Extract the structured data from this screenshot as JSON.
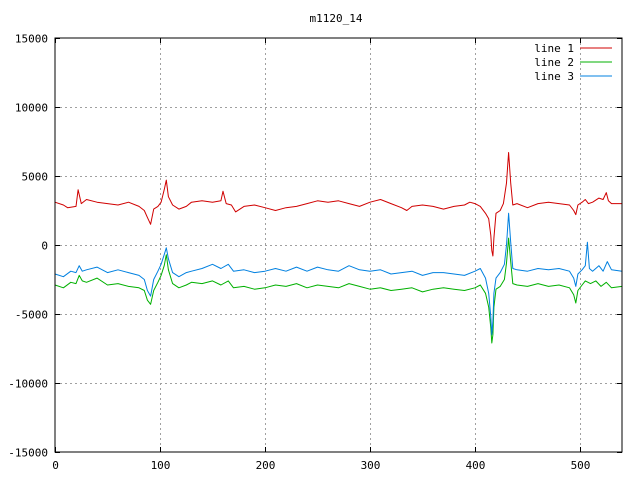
{
  "chart_data": {
    "type": "line",
    "title": "m1120_14",
    "xlabel": "",
    "ylabel": "",
    "xlim": [
      0,
      540
    ],
    "ylim": [
      -15000,
      15000
    ],
    "xticks": [
      0,
      100,
      200,
      300,
      400,
      500
    ],
    "yticks": [
      -15000,
      -10000,
      -5000,
      0,
      5000,
      10000,
      15000
    ],
    "grid": true,
    "legend_position": "top-right",
    "series": [
      {
        "name": "line 1",
        "color": "#d00000",
        "points": [
          [
            0,
            3100
          ],
          [
            8,
            2900
          ],
          [
            12,
            2700
          ],
          [
            20,
            2800
          ],
          [
            22,
            4000
          ],
          [
            25,
            3000
          ],
          [
            30,
            3300
          ],
          [
            40,
            3100
          ],
          [
            50,
            3000
          ],
          [
            60,
            2900
          ],
          [
            70,
            3100
          ],
          [
            80,
            2800
          ],
          [
            85,
            2500
          ],
          [
            88,
            2000
          ],
          [
            91,
            1500
          ],
          [
            94,
            2600
          ],
          [
            98,
            2800
          ],
          [
            101,
            3100
          ],
          [
            104,
            4000
          ],
          [
            106,
            4700
          ],
          [
            108,
            3500
          ],
          [
            112,
            2900
          ],
          [
            118,
            2600
          ],
          [
            125,
            2800
          ],
          [
            130,
            3100
          ],
          [
            140,
            3200
          ],
          [
            150,
            3100
          ],
          [
            158,
            3200
          ],
          [
            160,
            3900
          ],
          [
            163,
            3000
          ],
          [
            168,
            2900
          ],
          [
            172,
            2400
          ],
          [
            180,
            2800
          ],
          [
            190,
            2900
          ],
          [
            200,
            2700
          ],
          [
            210,
            2500
          ],
          [
            220,
            2700
          ],
          [
            230,
            2800
          ],
          [
            240,
            3000
          ],
          [
            250,
            3200
          ],
          [
            260,
            3100
          ],
          [
            270,
            3200
          ],
          [
            280,
            3000
          ],
          [
            290,
            2800
          ],
          [
            300,
            3100
          ],
          [
            310,
            3300
          ],
          [
            320,
            3000
          ],
          [
            330,
            2700
          ],
          [
            335,
            2500
          ],
          [
            340,
            2800
          ],
          [
            350,
            2900
          ],
          [
            360,
            2800
          ],
          [
            370,
            2600
          ],
          [
            380,
            2800
          ],
          [
            390,
            2900
          ],
          [
            395,
            3100
          ],
          [
            400,
            3000
          ],
          [
            405,
            2800
          ],
          [
            410,
            2300
          ],
          [
            413,
            1900
          ],
          [
            415,
            700
          ],
          [
            416,
            -400
          ],
          [
            417,
            -800
          ],
          [
            418,
            500
          ],
          [
            420,
            2300
          ],
          [
            424,
            2500
          ],
          [
            427,
            3000
          ],
          [
            430,
            4500
          ],
          [
            432,
            6700
          ],
          [
            434,
            4500
          ],
          [
            436,
            2900
          ],
          [
            440,
            3000
          ],
          [
            450,
            2700
          ],
          [
            460,
            3000
          ],
          [
            470,
            3100
          ],
          [
            480,
            3000
          ],
          [
            490,
            2900
          ],
          [
            494,
            2500
          ],
          [
            496,
            2200
          ],
          [
            498,
            2900
          ],
          [
            502,
            3100
          ],
          [
            505,
            3300
          ],
          [
            508,
            3000
          ],
          [
            512,
            3100
          ],
          [
            518,
            3400
          ],
          [
            522,
            3300
          ],
          [
            525,
            3800
          ],
          [
            527,
            3200
          ],
          [
            530,
            3000
          ],
          [
            540,
            3000
          ]
        ]
      },
      {
        "name": "line 2",
        "color": "#00b000",
        "points": [
          [
            0,
            -2900
          ],
          [
            8,
            -3100
          ],
          [
            15,
            -2700
          ],
          [
            20,
            -2800
          ],
          [
            23,
            -2200
          ],
          [
            26,
            -2600
          ],
          [
            30,
            -2700
          ],
          [
            40,
            -2400
          ],
          [
            50,
            -2900
          ],
          [
            60,
            -2800
          ],
          [
            70,
            -3000
          ],
          [
            80,
            -3100
          ],
          [
            85,
            -3300
          ],
          [
            88,
            -4000
          ],
          [
            91,
            -4300
          ],
          [
            94,
            -3300
          ],
          [
            98,
            -2700
          ],
          [
            101,
            -2200
          ],
          [
            104,
            -1500
          ],
          [
            106,
            -700
          ],
          [
            108,
            -1800
          ],
          [
            112,
            -2800
          ],
          [
            118,
            -3100
          ],
          [
            125,
            -2900
          ],
          [
            130,
            -2700
          ],
          [
            140,
            -2800
          ],
          [
            150,
            -2600
          ],
          [
            158,
            -2900
          ],
          [
            165,
            -2600
          ],
          [
            170,
            -3100
          ],
          [
            180,
            -3000
          ],
          [
            190,
            -3200
          ],
          [
            200,
            -3100
          ],
          [
            210,
            -2900
          ],
          [
            220,
            -3000
          ],
          [
            230,
            -2800
          ],
          [
            240,
            -3100
          ],
          [
            250,
            -2900
          ],
          [
            260,
            -3000
          ],
          [
            270,
            -3100
          ],
          [
            280,
            -2800
          ],
          [
            290,
            -3000
          ],
          [
            300,
            -3200
          ],
          [
            310,
            -3100
          ],
          [
            320,
            -3300
          ],
          [
            330,
            -3200
          ],
          [
            340,
            -3100
          ],
          [
            350,
            -3400
          ],
          [
            360,
            -3200
          ],
          [
            370,
            -3100
          ],
          [
            380,
            -3200
          ],
          [
            390,
            -3300
          ],
          [
            400,
            -3100
          ],
          [
            405,
            -2900
          ],
          [
            410,
            -3500
          ],
          [
            413,
            -4500
          ],
          [
            415,
            -6000
          ],
          [
            416,
            -7100
          ],
          [
            417,
            -6500
          ],
          [
            418,
            -4500
          ],
          [
            420,
            -3200
          ],
          [
            424,
            -3000
          ],
          [
            428,
            -2500
          ],
          [
            430,
            -1300
          ],
          [
            432,
            500
          ],
          [
            434,
            -1200
          ],
          [
            436,
            -2800
          ],
          [
            440,
            -2900
          ],
          [
            450,
            -3000
          ],
          [
            460,
            -2800
          ],
          [
            470,
            -3000
          ],
          [
            480,
            -2900
          ],
          [
            490,
            -3100
          ],
          [
            494,
            -3600
          ],
          [
            496,
            -4200
          ],
          [
            498,
            -3300
          ],
          [
            502,
            -2900
          ],
          [
            505,
            -2600
          ],
          [
            510,
            -2800
          ],
          [
            515,
            -2600
          ],
          [
            520,
            -3000
          ],
          [
            525,
            -2700
          ],
          [
            530,
            -3100
          ],
          [
            540,
            -3000
          ]
        ]
      },
      {
        "name": "line 3",
        "color": "#0080e0",
        "points": [
          [
            0,
            -2100
          ],
          [
            8,
            -2300
          ],
          [
            15,
            -1900
          ],
          [
            20,
            -2000
          ],
          [
            23,
            -1500
          ],
          [
            26,
            -1900
          ],
          [
            30,
            -1800
          ],
          [
            40,
            -1600
          ],
          [
            50,
            -2000
          ],
          [
            60,
            -1800
          ],
          [
            70,
            -2000
          ],
          [
            80,
            -2200
          ],
          [
            85,
            -2500
          ],
          [
            88,
            -3300
          ],
          [
            91,
            -3700
          ],
          [
            94,
            -2500
          ],
          [
            98,
            -1900
          ],
          [
            101,
            -1400
          ],
          [
            104,
            -700
          ],
          [
            106,
            -200
          ],
          [
            108,
            -1000
          ],
          [
            112,
            -2000
          ],
          [
            118,
            -2300
          ],
          [
            125,
            -2000
          ],
          [
            130,
            -1900
          ],
          [
            140,
            -1700
          ],
          [
            150,
            -1400
          ],
          [
            158,
            -1700
          ],
          [
            165,
            -1400
          ],
          [
            170,
            -1900
          ],
          [
            180,
            -1800
          ],
          [
            190,
            -2000
          ],
          [
            200,
            -1900
          ],
          [
            210,
            -1700
          ],
          [
            220,
            -1900
          ],
          [
            230,
            -1600
          ],
          [
            240,
            -1900
          ],
          [
            250,
            -1600
          ],
          [
            260,
            -1800
          ],
          [
            270,
            -1900
          ],
          [
            280,
            -1500
          ],
          [
            290,
            -1800
          ],
          [
            300,
            -1900
          ],
          [
            310,
            -1800
          ],
          [
            320,
            -2100
          ],
          [
            330,
            -2000
          ],
          [
            340,
            -1900
          ],
          [
            350,
            -2200
          ],
          [
            360,
            -2000
          ],
          [
            370,
            -2000
          ],
          [
            380,
            -2100
          ],
          [
            390,
            -2200
          ],
          [
            400,
            -1900
          ],
          [
            405,
            -1700
          ],
          [
            410,
            -2400
          ],
          [
            413,
            -3500
          ],
          [
            415,
            -5200
          ],
          [
            416,
            -6500
          ],
          [
            417,
            -5500
          ],
          [
            418,
            -3500
          ],
          [
            420,
            -2400
          ],
          [
            424,
            -2000
          ],
          [
            428,
            -1400
          ],
          [
            430,
            0
          ],
          [
            432,
            2300
          ],
          [
            434,
            200
          ],
          [
            436,
            -1700
          ],
          [
            440,
            -1800
          ],
          [
            450,
            -1900
          ],
          [
            460,
            -1700
          ],
          [
            470,
            -1800
          ],
          [
            480,
            -1700
          ],
          [
            490,
            -1900
          ],
          [
            494,
            -2400
          ],
          [
            496,
            -3000
          ],
          [
            498,
            -2100
          ],
          [
            502,
            -1800
          ],
          [
            505,
            -1500
          ],
          [
            507,
            200
          ],
          [
            509,
            -1700
          ],
          [
            512,
            -1900
          ],
          [
            518,
            -1500
          ],
          [
            522,
            -1900
          ],
          [
            526,
            -1200
          ],
          [
            530,
            -1800
          ],
          [
            540,
            -1900
          ]
        ]
      }
    ]
  }
}
